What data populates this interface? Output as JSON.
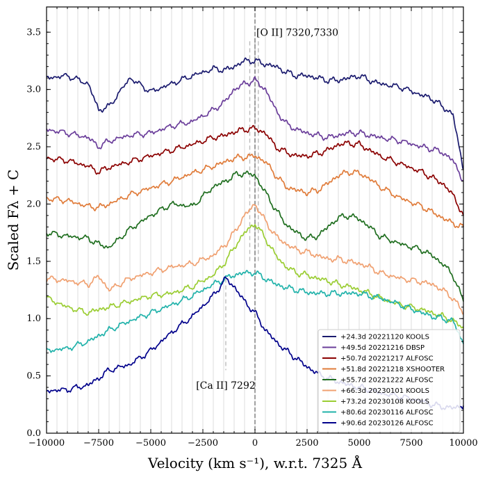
{
  "chart_data": {
    "type": "line",
    "xlabel": "Velocity (km s⁻¹), w.r.t. 7325 Å",
    "ylabel": "Scaled Fλ + C",
    "xlim": [
      -10000,
      10000
    ],
    "ylim": [
      0,
      3.72
    ],
    "x_ticks": [
      -10000,
      -7500,
      -5000,
      -2500,
      0,
      2500,
      5000,
      7500,
      10000
    ],
    "x_tick_labels": [
      "−10000",
      "−7500",
      "−5000",
      "−2500",
      "0",
      "2500",
      "5000",
      "7500",
      "10000"
    ],
    "y_ticks": [
      0,
      0.5,
      1,
      1.5,
      2,
      2.5,
      3,
      3.5
    ],
    "y_tick_labels": [
      "0.0",
      "0.5",
      "1.0",
      "1.5",
      "2.0",
      "2.5",
      "3.0",
      "3.5"
    ],
    "grid": "vertical light lines every 500 km/s",
    "legend_position": "lower-right",
    "annotations": [
      {
        "text": "[O II] 7320,7330",
        "x": 0,
        "y": 3.5
      },
      {
        "text": "[Ca II] 7292",
        "x": -1400,
        "y": 0.45
      }
    ],
    "reference_lines": [
      {
        "label": "[O II] 7320,7330",
        "x": [
          -250,
          0,
          160
        ],
        "ymin": 1.5,
        "ymax": 3.42
      },
      {
        "label": "[Ca II] 7292",
        "x": [
          -1400
        ],
        "ymin": 0.55,
        "ymax": 1.35
      },
      {
        "label": "rest",
        "x": [
          0
        ],
        "ymin": 0,
        "ymax": 3.72
      }
    ],
    "x": [
      -10000,
      -9000,
      -8000,
      -7500,
      -7000,
      -6000,
      -5000,
      -4000,
      -3000,
      -2000,
      -1400,
      -1000,
      -500,
      0,
      500,
      1000,
      1500,
      2000,
      2500,
      3000,
      3500,
      4000,
      4500,
      5000,
      5500,
      6000,
      7000,
      8000,
      8500,
      9000,
      9500,
      10000
    ],
    "series": [
      {
        "name": "+24.3d 20221120 KOOLS",
        "color": "#1a1a6e",
        "values": [
          3.1,
          3.12,
          3.05,
          2.82,
          2.85,
          3.1,
          2.98,
          3.05,
          3.12,
          3.18,
          3.17,
          3.2,
          3.25,
          3.25,
          3.22,
          3.2,
          3.15,
          3.12,
          3.12,
          3.1,
          3.08,
          3.08,
          3.1,
          3.12,
          3.08,
          3.05,
          3.02,
          2.95,
          2.92,
          2.85,
          2.78,
          2.3
        ]
      },
      {
        "name": "+49.5d 20221216 DBSP",
        "color": "#6a3d9a",
        "values": [
          2.65,
          2.62,
          2.58,
          2.5,
          2.55,
          2.6,
          2.62,
          2.68,
          2.72,
          2.82,
          2.9,
          3.0,
          3.05,
          3.08,
          3.0,
          2.82,
          2.7,
          2.65,
          2.62,
          2.6,
          2.58,
          2.6,
          2.62,
          2.62,
          2.6,
          2.58,
          2.55,
          2.5,
          2.48,
          2.45,
          2.38,
          2.2
        ]
      },
      {
        "name": "+50.7d 20221217 ALFOSC",
        "color": "#8b0000",
        "values": [
          2.4,
          2.38,
          2.33,
          2.28,
          2.32,
          2.37,
          2.42,
          2.47,
          2.52,
          2.58,
          2.6,
          2.63,
          2.65,
          2.66,
          2.62,
          2.5,
          2.45,
          2.42,
          2.42,
          2.44,
          2.47,
          2.52,
          2.53,
          2.52,
          2.47,
          2.42,
          2.35,
          2.28,
          2.23,
          2.18,
          2.08,
          1.9
        ]
      },
      {
        "name": "+51.8d 20221218 XSHOOTER",
        "color": "#e07b39",
        "values": [
          2.05,
          2.03,
          1.98,
          1.97,
          2.0,
          2.08,
          2.14,
          2.2,
          2.27,
          2.33,
          2.37,
          2.4,
          2.41,
          2.42,
          2.37,
          2.25,
          2.15,
          2.12,
          2.1,
          2.12,
          2.18,
          2.25,
          2.28,
          2.27,
          2.22,
          2.15,
          2.05,
          1.98,
          1.93,
          1.88,
          1.83,
          1.8
        ]
      },
      {
        "name": "+55.7d 20221222 ALFOSC",
        "color": "#1f6e1f",
        "values": [
          1.75,
          1.72,
          1.7,
          1.65,
          1.62,
          1.78,
          1.9,
          2.0,
          1.98,
          2.15,
          2.2,
          2.25,
          2.27,
          2.25,
          2.1,
          1.95,
          1.82,
          1.75,
          1.7,
          1.72,
          1.8,
          1.88,
          1.9,
          1.87,
          1.8,
          1.72,
          1.65,
          1.6,
          1.55,
          1.48,
          1.38,
          1.15
        ]
      },
      {
        "name": "+66.3d 20230101 KOOLS",
        "color": "#f0a070",
        "values": [
          1.35,
          1.33,
          1.3,
          1.37,
          1.25,
          1.35,
          1.4,
          1.45,
          1.48,
          1.55,
          1.65,
          1.75,
          1.9,
          2.0,
          1.85,
          1.72,
          1.65,
          1.6,
          1.58,
          1.55,
          1.52,
          1.52,
          1.5,
          1.48,
          1.45,
          1.4,
          1.35,
          1.32,
          1.3,
          1.25,
          1.18,
          1.05
        ]
      },
      {
        "name": "+73.2d 20230108 KOOLS",
        "color": "#9acd32",
        "values": [
          1.18,
          1.1,
          1.05,
          1.08,
          1.1,
          1.15,
          1.2,
          1.22,
          1.28,
          1.38,
          1.5,
          1.62,
          1.75,
          1.83,
          1.7,
          1.55,
          1.45,
          1.4,
          1.38,
          1.35,
          1.33,
          1.3,
          1.28,
          1.25,
          1.22,
          1.18,
          1.12,
          1.08,
          1.05,
          1.02,
          0.98,
          0.92
        ]
      },
      {
        "name": "+80.6d 20230116 ALFOSC",
        "color": "#20b2aa",
        "values": [
          0.72,
          0.74,
          0.8,
          0.85,
          0.9,
          0.98,
          1.05,
          1.12,
          1.2,
          1.3,
          1.35,
          1.38,
          1.4,
          1.4,
          1.35,
          1.3,
          1.27,
          1.25,
          1.23,
          1.22,
          1.22,
          1.22,
          1.22,
          1.22,
          1.2,
          1.18,
          1.12,
          1.05,
          1.02,
          1.0,
          0.98,
          0.78
        ]
      },
      {
        "name": "+90.6d 20230126 ALFOSC",
        "color": "#00008b",
        "values": [
          0.37,
          0.38,
          0.42,
          0.48,
          0.55,
          0.6,
          0.72,
          0.88,
          1.02,
          1.2,
          1.35,
          1.28,
          1.15,
          1.05,
          0.9,
          0.8,
          0.72,
          0.65,
          0.58,
          0.52,
          0.48,
          0.45,
          0.42,
          0.4,
          0.38,
          0.35,
          0.32,
          0.28,
          0.25,
          0.23,
          0.22,
          0.24
        ]
      }
    ]
  }
}
